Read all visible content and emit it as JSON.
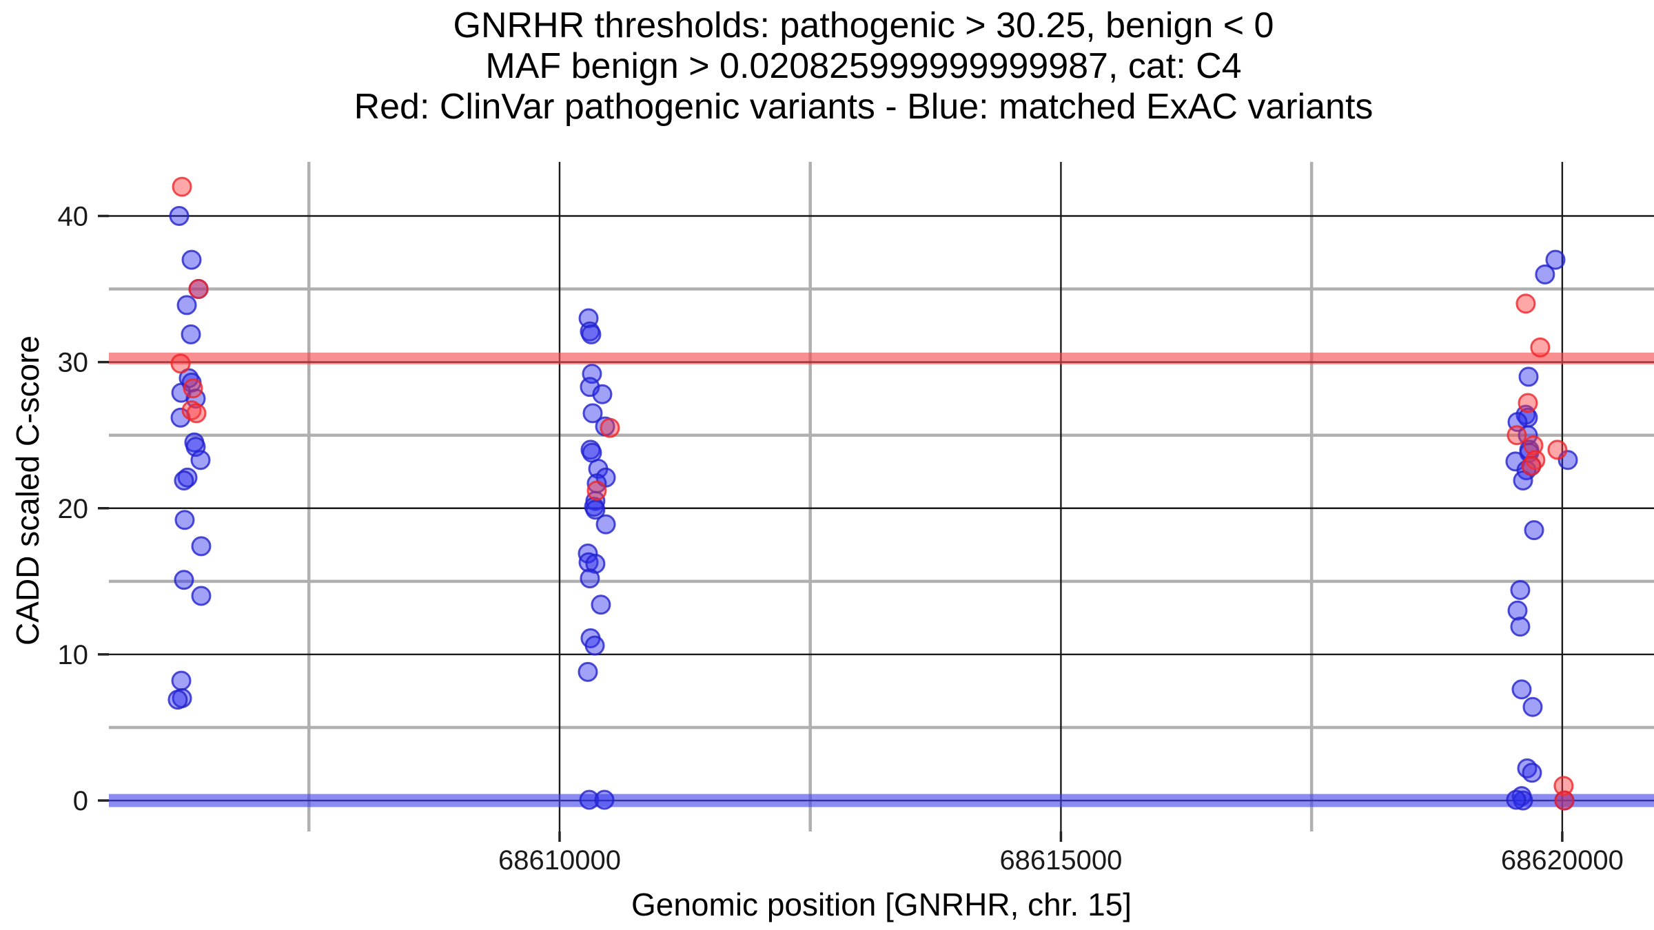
{
  "chart_data": {
    "type": "scatter",
    "title_lines": [
      "GNRHR thresholds: pathogenic > 30.25, benign < 0",
      "MAF benign > 0.020825999999999987, cat: C4",
      "Red: ClinVar pathogenic variants - Blue: matched ExAC variants"
    ],
    "xlabel": "Genomic position [GNRHR, chr. 15]",
    "ylabel": "CADD scaled C-score",
    "parameters": {
      "gene": "GNRHR",
      "pathogenic_threshold": 30.25,
      "benign_threshold": 0,
      "maf_benign": "0.020825999999999987",
      "category": "C4"
    },
    "x_axis": {
      "range": [
        68605505,
        68620915
      ],
      "major_ticks": [
        {
          "value": 68610000,
          "label": "68610000"
        },
        {
          "value": 68615000,
          "label": "68615000"
        },
        {
          "value": 68620000,
          "label": "68620000"
        }
      ],
      "minor_ticks": [
        68607500,
        68612500,
        68617500
      ]
    },
    "y_axis": {
      "range": [
        -2.12,
        43.7
      ],
      "major_ticks": [
        {
          "value": 0,
          "label": "0"
        },
        {
          "value": 10,
          "label": "10"
        },
        {
          "value": 20,
          "label": "20"
        },
        {
          "value": 30,
          "label": "30"
        },
        {
          "value": 40,
          "label": "40"
        }
      ],
      "minor_ticks": [
        5,
        15,
        25,
        35
      ]
    },
    "grid": {
      "major_color": "#1a1a1a",
      "minor_color": "#b0b0b0"
    },
    "thresholds": [
      {
        "name": "pathogenic",
        "y": 30.25,
        "color": "#f6484c",
        "rule": "pathogenic > 30.25"
      },
      {
        "name": "benign",
        "y": 0,
        "color": "#4343ee",
        "rule": "benign < 0"
      }
    ],
    "legend": {
      "red": "ClinVar pathogenic variants",
      "blue": "matched ExAC variants"
    },
    "series": [
      {
        "name": "matched ExAC variants",
        "color_fill": "#2f2fef",
        "color_stroke": "#2222cc",
        "points": [
          [
            68606206,
            40
          ],
          [
            68606330,
            37
          ],
          [
            68606399,
            35
          ],
          [
            68606282,
            33.9
          ],
          [
            68606323,
            31.9
          ],
          [
            68606302,
            28.9
          ],
          [
            68606330,
            28.6
          ],
          [
            68606227,
            27.9
          ],
          [
            68606371,
            27.5
          ],
          [
            68606220,
            26.2
          ],
          [
            68606357,
            24.5
          ],
          [
            68606371,
            24.2
          ],
          [
            68606419,
            23.3
          ],
          [
            68606289,
            22.1
          ],
          [
            68606254,
            21.9
          ],
          [
            68606261,
            19.2
          ],
          [
            68606426,
            17.4
          ],
          [
            68606254,
            15.1
          ],
          [
            68606426,
            14
          ],
          [
            68606227,
            8.2
          ],
          [
            68606234,
            7
          ],
          [
            68606192,
            6.9
          ],
          [
            68610289,
            33
          ],
          [
            68610302,
            32.1
          ],
          [
            68610316,
            31.9
          ],
          [
            68610323,
            29.2
          ],
          [
            68610302,
            28.3
          ],
          [
            68610426,
            27.8
          ],
          [
            68610330,
            26.5
          ],
          [
            68610454,
            25.6
          ],
          [
            68610309,
            24
          ],
          [
            68610323,
            23.8
          ],
          [
            68610385,
            22.7
          ],
          [
            68610461,
            22.1
          ],
          [
            68610371,
            21.7
          ],
          [
            68610357,
            20.5
          ],
          [
            68610344,
            20.1
          ],
          [
            68610357,
            19.9
          ],
          [
            68610461,
            18.9
          ],
          [
            68610282,
            16.9
          ],
          [
            68610289,
            16.3
          ],
          [
            68610357,
            16.2
          ],
          [
            68610302,
            15.2
          ],
          [
            68610412,
            13.4
          ],
          [
            68610309,
            11.1
          ],
          [
            68610351,
            10.6
          ],
          [
            68610282,
            8.8
          ],
          [
            68610296,
            0.05
          ],
          [
            68610447,
            0.05
          ],
          [
            68619932,
            37
          ],
          [
            68619828,
            36
          ],
          [
            68619664,
            29
          ],
          [
            68619636,
            26.4
          ],
          [
            68619657,
            26.2
          ],
          [
            68619554,
            25.9
          ],
          [
            68619657,
            25
          ],
          [
            68619671,
            24
          ],
          [
            68619671,
            23.8
          ],
          [
            68620056,
            23.3
          ],
          [
            68619533,
            23.2
          ],
          [
            68619691,
            22.9
          ],
          [
            68619643,
            22.6
          ],
          [
            68619609,
            21.9
          ],
          [
            68619719,
            18.5
          ],
          [
            68619581,
            14.4
          ],
          [
            68619554,
            13
          ],
          [
            68619581,
            11.9
          ],
          [
            68619595,
            7.6
          ],
          [
            68619705,
            6.4
          ],
          [
            68619650,
            2.2
          ],
          [
            68619698,
            1.9
          ],
          [
            68619595,
            0.3
          ],
          [
            68619609,
            0
          ],
          [
            68619540,
            0.05
          ],
          [
            68620021,
            0
          ]
        ]
      },
      {
        "name": "ClinVar pathogenic variants",
        "color_fill": "#fa3c40",
        "color_stroke": "#ef2428",
        "points": [
          [
            68606234,
            42
          ],
          [
            68606399,
            35
          ],
          [
            68606220,
            29.9
          ],
          [
            68606344,
            28.2
          ],
          [
            68606330,
            26.7
          ],
          [
            68606378,
            26.5
          ],
          [
            68610502,
            25.5
          ],
          [
            68610371,
            21.2
          ],
          [
            68619636,
            34
          ],
          [
            68619780,
            31
          ],
          [
            68619657,
            27.2
          ],
          [
            68619547,
            25
          ],
          [
            68619712,
            24.3
          ],
          [
            68619952,
            24
          ],
          [
            68619732,
            23.3
          ],
          [
            68619691,
            22.9
          ],
          [
            68620014,
            1
          ],
          [
            68620021,
            0
          ]
        ]
      }
    ]
  }
}
